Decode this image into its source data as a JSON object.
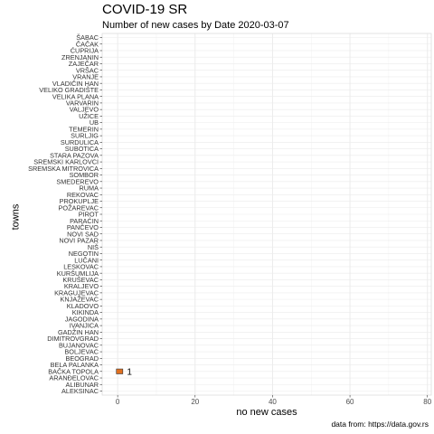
{
  "chart_data": {
    "type": "bar",
    "orientation": "horizontal",
    "title": "COVID-19 SR",
    "subtitle": "Number of new cases by Date 2020-03-07",
    "xlabel": "no new cases",
    "ylabel": "towns",
    "caption": "data from: https://data.gov.rs",
    "xlim": [
      -4,
      81
    ],
    "xticks": [
      0,
      20,
      40,
      60,
      80
    ],
    "grid": true,
    "bar_color": "#e07020",
    "categories": [
      "ŠABAC",
      "ČAČAK",
      "ĆUPRIJA",
      "ZRENJANIN",
      "ZAJEČAR",
      "VRŠAC",
      "VRANJE",
      "VLADIČIN HAN",
      "VELIKO GRADIŠTE",
      "VELIKA PLANA",
      "VARVARIN",
      "VALJEVO",
      "UŽICE",
      "UB",
      "TEMERIN",
      "SURLJIG",
      "SURDULICA",
      "SUBOTICA",
      "STARA PAZOVA",
      "SREMSKI KARLOVCI",
      "SREMSKA MITROVICA",
      "SOMBOR",
      "SMEDEREVO",
      "RUMA",
      "REKOVAC",
      "PROKUPLJE",
      "POŽAREVAC",
      "PIROT",
      "PARAĆIN",
      "PANČEVO",
      "NOVI SAD",
      "NOVI PAZAR",
      "NIŠ",
      "NEGOTIN",
      "LUČANI",
      "LESKOVAC",
      "KURŠUMLIJA",
      "KRUŠEVAC",
      "KRALJEVO",
      "KRAGUJEVAC",
      "KNJAŽEVAC",
      "KLADOVO",
      "KIKINDA",
      "JAGODINA",
      "IVANJICA",
      "GADŽIN HAN",
      "DIMITROVGRAD",
      "BUJANOVAC",
      "BOLJEVAC",
      "BEOGRAD",
      "BELA PALANKA",
      "BAČKA TOPOLA",
      "ARANĐELOVAC",
      "ALIBUNAR",
      "ALEKSINAC"
    ],
    "values": [
      0,
      0,
      0,
      0,
      0,
      0,
      0,
      0,
      0,
      0,
      0,
      0,
      0,
      0,
      0,
      0,
      0,
      0,
      0,
      0,
      0,
      0,
      0,
      0,
      0,
      0,
      0,
      0,
      0,
      0,
      0,
      0,
      0,
      0,
      0,
      0,
      0,
      0,
      0,
      0,
      0,
      0,
      0,
      0,
      0,
      0,
      0,
      0,
      0,
      0,
      0,
      1,
      0,
      0,
      0
    ],
    "data_labels": [
      {
        "category": "BAČKA TOPOLA",
        "text": "1"
      }
    ]
  }
}
